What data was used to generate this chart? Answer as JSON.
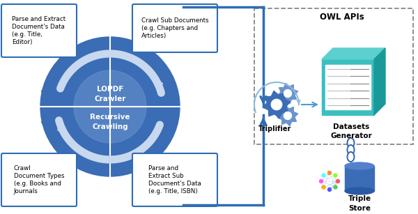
{
  "bg_color": "#ffffff",
  "blue": "#3A6DB5",
  "light_blue": "#6B93CE",
  "arrow_white": "#C8D8EE",
  "flow_blue": "#2E6DB4",
  "teal": "#3BBFBF",
  "teal_light": "#5DCFCF",
  "teal_dark": "#1A9999",
  "box_border": "#2E6DB4",
  "dashed_border": "#888888",
  "cloud_color": "#2E6DB4",
  "cyl_color": "#3A6DB5",
  "owl_apis_label": "OWL APIs",
  "lopdf_label": "LOPDF\nCrawler",
  "recursive_label": "Recursive\nCrawling",
  "triplifier_label": "Triplifier",
  "datasets_gen_label": "Datasets\nGenerator",
  "triple_store_label": "Triple\nStore",
  "box1_text": "Parse and Extract\nDocument's Data\n(e.g. Title,\nEditor)",
  "box2_text": "Crawl Sub Documents\n(e.g. Chapters and\nArticles)",
  "box3_text": "Crawl\nDocument Types\n(e.g. Books and\nJournals",
  "box4_text": "Parse and\nExtract Sub\nDocument's Data\n(e.g. Title, ISBN)"
}
